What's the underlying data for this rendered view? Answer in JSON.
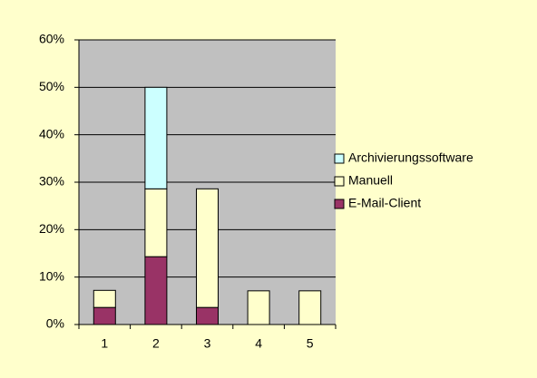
{
  "chart_data": {
    "type": "stacked_bar",
    "categories": [
      "1",
      "2",
      "3",
      "4",
      "5"
    ],
    "series": [
      {
        "name": "E-Mail-Client",
        "color": "#993366",
        "values": [
          3.6,
          14.3,
          3.6,
          0,
          0
        ]
      },
      {
        "name": "Manuell",
        "color": "#FFFFCC",
        "values": [
          3.6,
          14.3,
          25,
          7.1,
          7.1
        ]
      },
      {
        "name": "Archivierungssoftware",
        "color": "#CCFFFF",
        "values": [
          0,
          21.4,
          0,
          0,
          0
        ]
      }
    ],
    "ylim": [
      0,
      60
    ],
    "yticks": [
      {
        "value": 0,
        "label": "0%"
      },
      {
        "value": 10,
        "label": "10%"
      },
      {
        "value": 20,
        "label": "20%"
      },
      {
        "value": 30,
        "label": "30%"
      },
      {
        "value": 40,
        "label": "40%"
      },
      {
        "value": 50,
        "label": "50%"
      },
      {
        "value": 60,
        "label": "60%"
      }
    ],
    "grid": true,
    "legend": "right"
  }
}
